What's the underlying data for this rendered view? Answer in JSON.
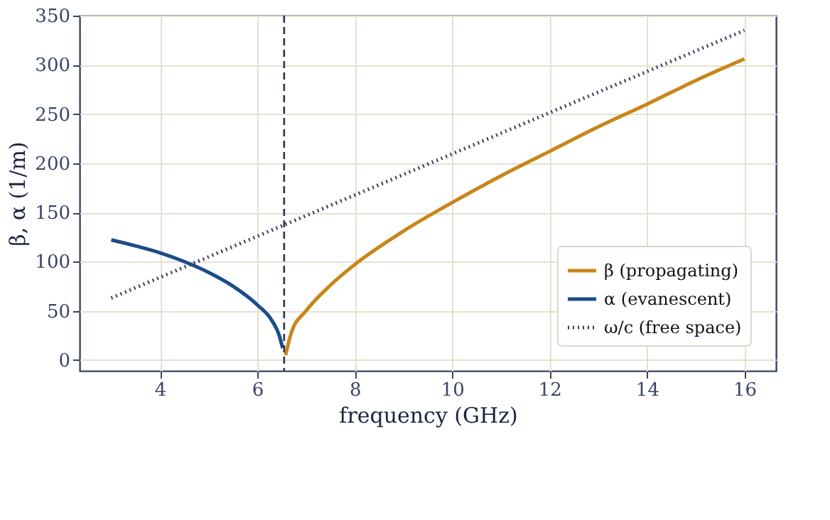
{
  "chart_data": {
    "type": "line",
    "xlabel": "frequency (GHz)",
    "ylabel": "β,  α (1/m)",
    "xlim": [
      2.35,
      16.65
    ],
    "xticks": [
      4,
      6,
      8,
      10,
      12,
      14,
      16
    ],
    "ylim": [
      -11,
      350
    ],
    "yticks": [
      0,
      50,
      100,
      150,
      200,
      250,
      300,
      350
    ],
    "grid": true,
    "legend": "bottom right",
    "series": [
      {
        "name": "β (propagating)",
        "color": "#c8861a",
        "line_style": "solid",
        "x": [
          6.58,
          6.7,
          7,
          7.5,
          8,
          9,
          10,
          11,
          12,
          13,
          14,
          15,
          16
        ],
        "values": [
          5,
          28,
          50,
          76,
          97,
          131,
          160,
          187,
          212,
          237,
          260,
          284,
          306
        ]
      },
      {
        "name": "α (evanescent)",
        "color": "#1c4c8a",
        "line_style": "solid",
        "x": [
          3,
          3.5,
          4,
          4.5,
          5,
          5.5,
          6,
          6.3,
          6.45,
          6.52
        ],
        "values": [
          122,
          116,
          109,
          100,
          89,
          75,
          56,
          40,
          25,
          12
        ]
      },
      {
        "name": "ω/c (free space)",
        "color": "#3a3d5c",
        "line_style": "dotted",
        "x": [
          3,
          16
        ],
        "values": [
          63,
          335
        ]
      }
    ],
    "ref_lines": [
      {
        "axis": "x",
        "value": 6.55,
        "label": null,
        "color": "#2a3350",
        "line_style": "dashed"
      }
    ]
  }
}
